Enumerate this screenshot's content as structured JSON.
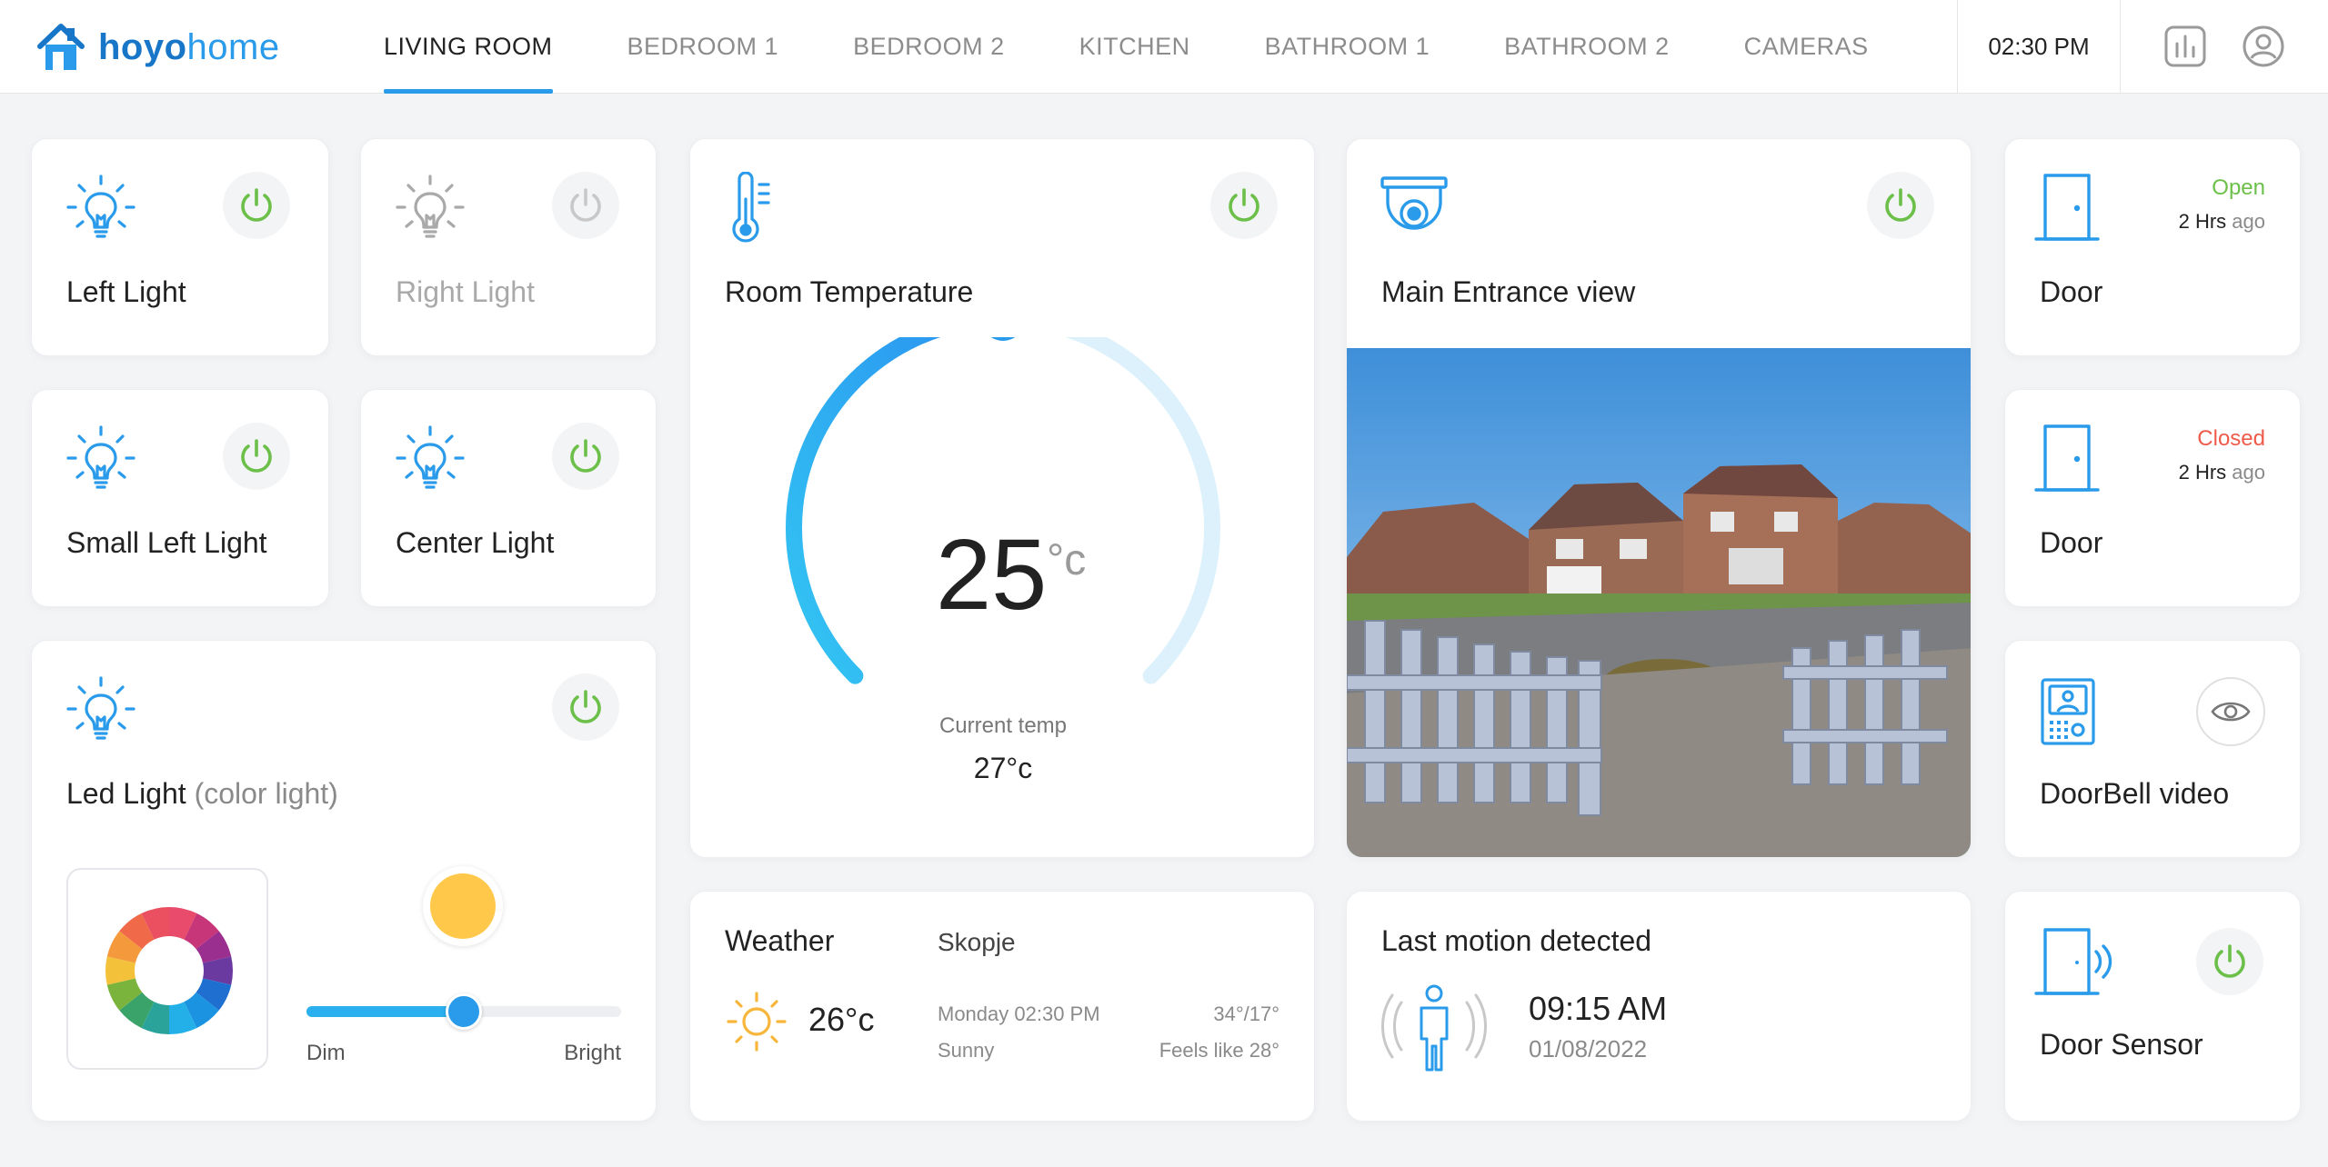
{
  "brand": {
    "part1": "hoyo",
    "part2": "home"
  },
  "tabs": [
    {
      "label": "LIVING ROOM",
      "active": true
    },
    {
      "label": "BEDROOM 1",
      "active": false
    },
    {
      "label": "BEDROOM 2",
      "active": false
    },
    {
      "label": "KITCHEN",
      "active": false
    },
    {
      "label": "BATHROOM 1",
      "active": false
    },
    {
      "label": "BATHROOM 2",
      "active": false
    },
    {
      "label": "CAMERAS",
      "active": false
    }
  ],
  "header": {
    "time": "02:30 PM",
    "stats_icon": "bar-chart-icon",
    "user_icon": "user-avatar-icon"
  },
  "colors": {
    "accent": "#2a9bea",
    "power_on": "#6cc04a",
    "power_off": "#c8c8c8",
    "open": "#6cc04a",
    "closed": "#ef5b4b"
  },
  "lights": [
    {
      "name": "Left Light",
      "on": true
    },
    {
      "name": "Right Light",
      "on": false
    },
    {
      "name": "Small Left Light",
      "on": true
    },
    {
      "name": "Center Light",
      "on": true
    }
  ],
  "led": {
    "name": "Led Light",
    "note": "(color light)",
    "dim_label": "Dim",
    "bright_label": "Bright",
    "brightness": 0.5,
    "color": "#ffc84a"
  },
  "temperature": {
    "title": "Room Temperature",
    "value": "25",
    "unit": "°c",
    "current_label": "Current temp",
    "current_value": "27°c",
    "level": 0.5
  },
  "camera": {
    "title": "Main Entrance view"
  },
  "weather": {
    "title": "Weather",
    "city": "Skopje",
    "temp": "26°c",
    "day_time": "Monday 02:30 PM",
    "condition": "Sunny",
    "range": "34°/17°",
    "feels": "Feels like 28°"
  },
  "motion": {
    "title": "Last motion detected",
    "time": "09:15 AM",
    "date": "01/08/2022"
  },
  "doors": [
    {
      "name": "Door",
      "status": "Open",
      "ago_num": "2 Hrs",
      "ago_word": "ago"
    },
    {
      "name": "Door",
      "status": "Closed",
      "ago_num": "2 Hrs",
      "ago_word": "ago"
    }
  ],
  "doorbell": {
    "name": "DoorBell video"
  },
  "door_sensor": {
    "name": "Door Sensor"
  }
}
